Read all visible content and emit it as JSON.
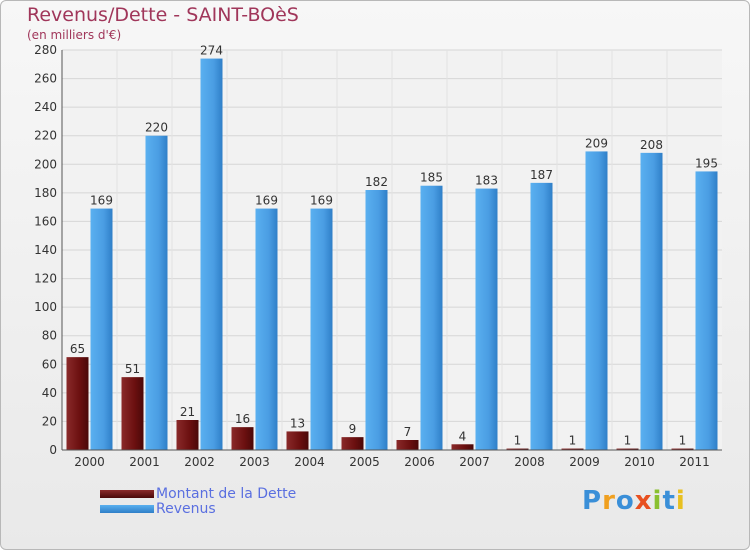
{
  "title": "Revenus/Dette - SAINT-BOèS",
  "subtitle": "(en milliers d'€)",
  "logo_text": "Proxiti",
  "legend": [
    {
      "label": "Montant de la Dette",
      "color": "#6b1010"
    },
    {
      "label": "Revenus",
      "color": "#4a9de3"
    }
  ],
  "chart_data": {
    "type": "bar",
    "categories": [
      "2000",
      "2001",
      "2002",
      "2003",
      "2004",
      "2005",
      "2006",
      "2007",
      "2008",
      "2009",
      "2010",
      "2011"
    ],
    "series": [
      {
        "name": "Montant de la Dette",
        "values": [
          65,
          51,
          21,
          16,
          13,
          9,
          7,
          4,
          1,
          1,
          1,
          1
        ],
        "color": "#7a1818"
      },
      {
        "name": "Revenus",
        "values": [
          169,
          220,
          274,
          169,
          169,
          182,
          185,
          183,
          187,
          209,
          208,
          195
        ],
        "color": "#4a9de3"
      }
    ],
    "ylim": [
      0,
      280
    ],
    "yticks": [
      0,
      20,
      40,
      60,
      80,
      100,
      120,
      140,
      160,
      180,
      200,
      220,
      240,
      260,
      280
    ],
    "grid": true,
    "legend_position": "bottom-left"
  }
}
